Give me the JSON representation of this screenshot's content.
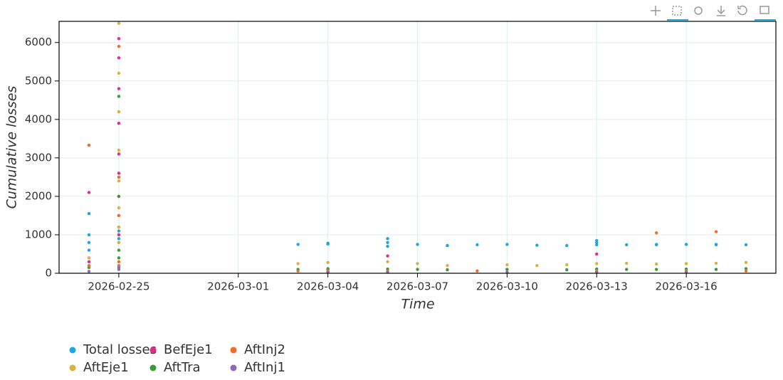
{
  "chart_data": {
    "type": "scatter",
    "xlabel": "Time",
    "ylabel": "Cumulative losses",
    "xlim": [
      "2026-02-23",
      "2026-03-19"
    ],
    "xticks": [
      "2026-02-25",
      "2026-03-01",
      "2026-03-04",
      "2026-03-07",
      "2026-03-10",
      "2026-03-13",
      "2026-03-16"
    ],
    "ylim": [
      0,
      6550
    ],
    "yticks": [
      0,
      1000,
      2000,
      3000,
      4000,
      5000,
      6000
    ],
    "grid": true,
    "series": [
      {
        "name": "Total losses",
        "color": "#1ea5e2",
        "x": [
          "2026-02-24",
          "2026-02-24",
          "2026-02-24",
          "2026-02-24",
          "2026-02-25",
          "2026-02-25",
          "2026-02-25",
          "2026-02-25",
          "2026-03-03",
          "2026-03-04",
          "2026-03-04",
          "2026-03-06",
          "2026-03-06",
          "2026-03-06",
          "2026-03-07",
          "2026-03-08",
          "2026-03-09",
          "2026-03-10",
          "2026-03-11",
          "2026-03-12",
          "2026-03-13",
          "2026-03-13",
          "2026-03-13",
          "2026-03-14",
          "2026-03-15",
          "2026-03-15",
          "2026-03-16",
          "2026-03-17",
          "2026-03-17",
          "2026-03-18"
        ],
        "values": [
          800,
          1000,
          1550,
          600,
          900,
          1200,
          1100,
          800,
          750,
          780,
          760,
          800,
          900,
          700,
          750,
          720,
          740,
          750,
          730,
          720,
          800,
          850,
          740,
          740,
          750,
          740,
          750,
          750,
          740,
          740
        ]
      },
      {
        "name": "AftEje1",
        "color": "#d9b23c",
        "x": [
          "2026-02-24",
          "2026-02-25",
          "2026-02-25",
          "2026-02-25",
          "2026-02-25",
          "2026-02-25",
          "2026-02-25",
          "2026-02-25",
          "2026-02-25",
          "2026-03-03",
          "2026-03-04",
          "2026-03-06",
          "2026-03-07",
          "2026-03-08",
          "2026-03-10",
          "2026-03-11",
          "2026-03-12",
          "2026-03-13",
          "2026-03-14",
          "2026-03-15",
          "2026-03-16",
          "2026-03-17",
          "2026-03-18"
        ],
        "values": [
          400,
          6500,
          5200,
          4200,
          3200,
          2400,
          1700,
          1200,
          800,
          250,
          280,
          300,
          250,
          200,
          220,
          200,
          220,
          250,
          260,
          240,
          250,
          260,
          280
        ]
      },
      {
        "name": "BefEje1",
        "color": "#e7298a",
        "x": [
          "2026-02-24",
          "2026-02-24",
          "2026-02-25",
          "2026-02-25",
          "2026-02-25",
          "2026-02-25",
          "2026-02-25",
          "2026-02-25",
          "2026-02-25",
          "2026-02-25",
          "2026-02-25",
          "2026-03-04",
          "2026-03-06",
          "2026-03-13"
        ],
        "values": [
          2100,
          300,
          6100,
          5600,
          4800,
          3900,
          3100,
          2600,
          2000,
          1500,
          1000,
          100,
          450,
          500
        ]
      },
      {
        "name": "AftTra",
        "color": "#3a9a3a",
        "x": [
          "2026-02-24",
          "2026-02-25",
          "2026-02-25",
          "2026-02-25",
          "2026-02-25",
          "2026-03-03",
          "2026-03-04",
          "2026-03-06",
          "2026-03-07",
          "2026-03-08",
          "2026-03-10",
          "2026-03-12",
          "2026-03-13",
          "2026-03-14",
          "2026-03-15",
          "2026-03-16",
          "2026-03-17",
          "2026-03-18"
        ],
        "values": [
          150,
          4600,
          2000,
          600,
          400,
          100,
          120,
          110,
          100,
          90,
          100,
          90,
          110,
          100,
          100,
          110,
          100,
          120
        ]
      },
      {
        "name": "AftInj2",
        "color": "#f26b2a",
        "x": [
          "2026-02-24",
          "2026-02-24",
          "2026-02-25",
          "2026-02-25",
          "2026-02-25",
          "2026-02-25",
          "2026-02-25",
          "2026-03-03",
          "2026-03-04",
          "2026-03-06",
          "2026-03-09",
          "2026-03-13",
          "2026-03-15",
          "2026-03-16",
          "2026-03-17",
          "2026-03-18"
        ],
        "values": [
          3330,
          200,
          5900,
          2500,
          1500,
          300,
          200,
          60,
          60,
          60,
          60,
          60,
          1050,
          60,
          1080,
          60
        ]
      },
      {
        "name": "AftInj1",
        "color": "#8c6bb1",
        "x": [
          "2026-02-24",
          "2026-02-25",
          "2026-02-25",
          "2026-03-04",
          "2026-03-06",
          "2026-03-10",
          "2026-03-13",
          "2026-03-16"
        ],
        "values": [
          50,
          150,
          100,
          30,
          30,
          30,
          30,
          30
        ]
      }
    ]
  }
}
